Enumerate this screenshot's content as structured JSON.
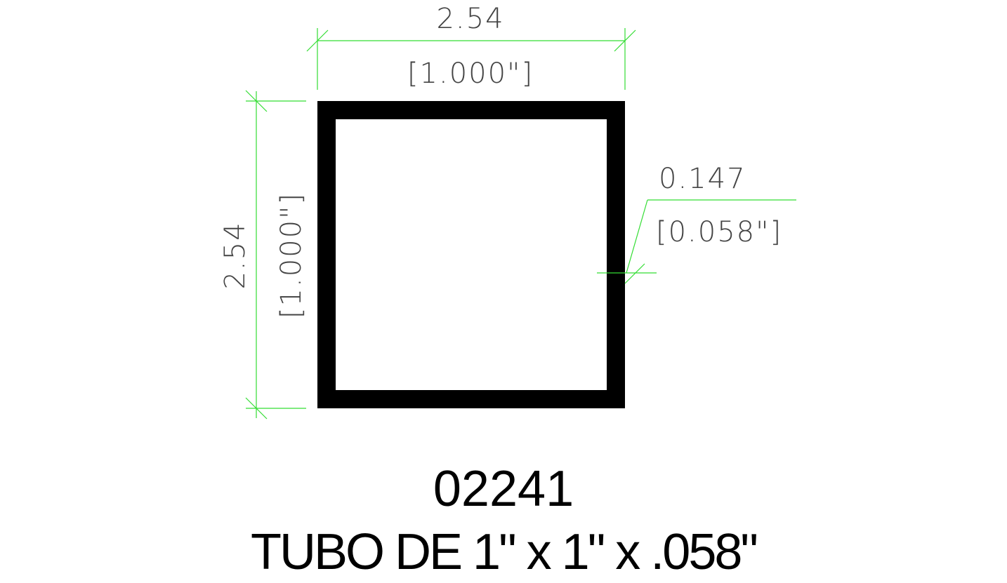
{
  "drawing": {
    "dimensions": {
      "width_metric": "2.54",
      "width_imperial": "[1.000\"]",
      "height_metric": "2.54",
      "height_imperial": "[1.000\"]",
      "wall_metric": "0.147",
      "wall_imperial": "[0.058\"]"
    },
    "colors": {
      "dimension_lines": "#33dd33",
      "dimension_text": "#444444",
      "profile": "#000000"
    }
  },
  "title_block": {
    "part_number": "02241",
    "description": "TUBO DE 1\" x 1\" x .058\""
  }
}
